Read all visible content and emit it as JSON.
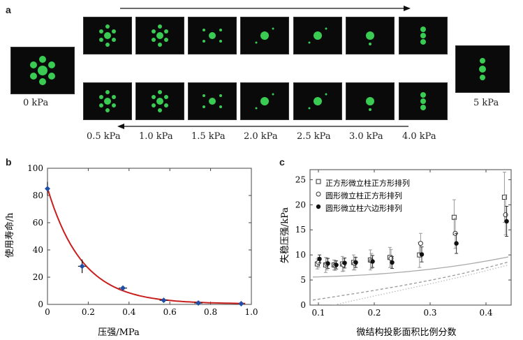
{
  "panel_a": {
    "label": "a",
    "left_caption": "0 kPa",
    "right_caption": "5 kPa",
    "pressures": [
      "0.5 kPa",
      "1.0 kPa",
      "1.5 kPa",
      "2.0 kPa",
      "2.5 kPa",
      "3.0 kPa",
      "4.0 kPa"
    ],
    "spot_color": "#3ee05a"
  },
  "panel_b": {
    "label": "b",
    "chart_data": {
      "type": "scatter",
      "title": "",
      "xlabel": "压强/MPa",
      "ylabel": "使用寿命/h",
      "xlim": [
        0,
        1.0
      ],
      "ylim": [
        0,
        100
      ],
      "xticks": [
        "0",
        "0.2",
        "0.4",
        "0.6",
        "0.8",
        "1.0"
      ],
      "yticks": [
        "0",
        "20",
        "40",
        "60",
        "80",
        "100"
      ],
      "points": [
        {
          "x": 0.0,
          "y": 85,
          "yerr": 5,
          "xerr": 0
        },
        {
          "x": 0.17,
          "y": 28,
          "yerr": 5,
          "xerr": 0.02
        },
        {
          "x": 0.37,
          "y": 12,
          "yerr": 1.5,
          "xerr": 0.02
        },
        {
          "x": 0.57,
          "y": 3,
          "yerr": 1,
          "xerr": 0.02
        },
        {
          "x": 0.74,
          "y": 1,
          "yerr": 0.5,
          "xerr": 0.02
        },
        {
          "x": 0.95,
          "y": 0.5,
          "yerr": 0.3,
          "xerr": 0
        }
      ],
      "fit_color": "#c81e1e",
      "point_color": "#1f4fa8"
    }
  },
  "panel_c": {
    "label": "c",
    "chart_data": {
      "type": "scatter",
      "title": "",
      "xlabel": "微结构投影面积比例分数",
      "ylabel": "失稳压强/kPa",
      "xlim": [
        0.085,
        0.445
      ],
      "ylim": [
        0,
        27
      ],
      "xticks": [
        "0.1",
        "0.2",
        "0.3",
        "0.4"
      ],
      "yticks": [
        "0",
        "5",
        "10",
        "15",
        "20",
        "25"
      ],
      "legend": [
        "正方形微立柱正方形排列",
        "圆形微立柱正方形排列",
        "圆形微立柱六边形排列"
      ],
      "series": [
        {
          "name": "正方形微立柱正方形排列",
          "marker": "square-open",
          "x": [
            0.1,
            0.115,
            0.13,
            0.145,
            0.165,
            0.195,
            0.23,
            0.283,
            0.345,
            0.435
          ],
          "y": [
            8.2,
            8.0,
            8.0,
            8.2,
            8.5,
            9.0,
            9.5,
            10.0,
            17.5,
            21.5
          ],
          "err": [
            1.0,
            1.5,
            1.0,
            1.5,
            1.5,
            2.0,
            2.0,
            2.5,
            3.5,
            5.0
          ]
        },
        {
          "name": "圆形微立柱正方形排列",
          "marker": "circle-open",
          "x": [
            0.1,
            0.115,
            0.13,
            0.145,
            0.165,
            0.195,
            0.23,
            0.283,
            0.345,
            0.435
          ],
          "y": [
            8.5,
            8.2,
            7.9,
            8.0,
            8.3,
            8.8,
            9.3,
            12.3,
            14.3,
            18.0
          ],
          "err": [
            1.0,
            1.2,
            1.0,
            1.2,
            1.3,
            1.5,
            1.8,
            2.0,
            3.0,
            4.0
          ]
        },
        {
          "name": "圆形微立柱六边形排列",
          "marker": "circle-filled",
          "x": [
            0.1,
            0.115,
            0.13,
            0.145,
            0.165,
            0.195,
            0.23,
            0.283,
            0.345,
            0.435
          ],
          "y": [
            9.2,
            8.3,
            8.0,
            8.4,
            8.5,
            8.7,
            8.5,
            10.1,
            12.3,
            16.7
          ],
          "err": [
            0.8,
            1.0,
            0.8,
            1.0,
            1.0,
            1.2,
            1.2,
            1.5,
            2.0,
            3.0
          ]
        }
      ],
      "curves": [
        {
          "name": "solid",
          "x": [
            0.09,
            0.2,
            0.3,
            0.44
          ],
          "y": [
            5.6,
            5.9,
            7.0,
            9.6
          ]
        },
        {
          "name": "dashed",
          "x": [
            0.09,
            0.2,
            0.3,
            0.44
          ],
          "y": [
            1.0,
            3.0,
            5.0,
            8.6
          ]
        },
        {
          "name": "dotted",
          "x": [
            0.09,
            0.2,
            0.3,
            0.44
          ],
          "y": [
            -1.0,
            2.2,
            4.5,
            8.0
          ]
        }
      ]
    }
  }
}
